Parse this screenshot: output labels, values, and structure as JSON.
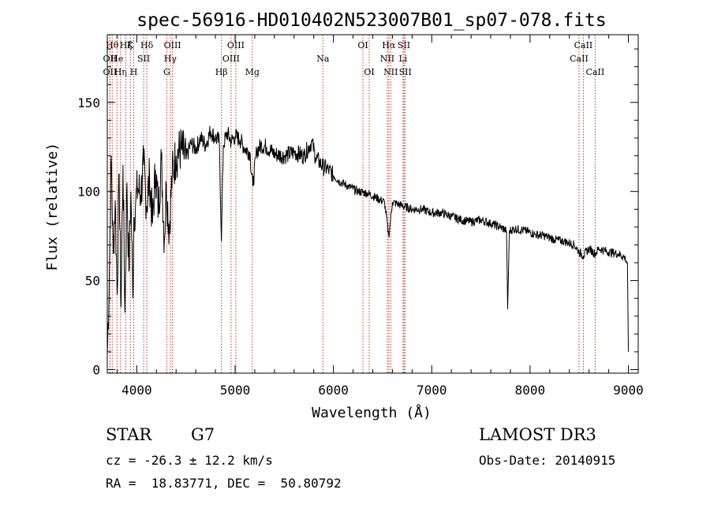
{
  "chart_data": {
    "type": "line",
    "title": "spec-56916-HD010402N523007B01_sp07-078.fits",
    "xlabel": "Wavelength (Å)",
    "ylabel": "Flux (relative)",
    "xlim": [
      3700,
      9100
    ],
    "ylim": [
      -2,
      188
    ],
    "xticks": [
      4000,
      5000,
      6000,
      7000,
      8000,
      9000
    ],
    "yticks": [
      0,
      50,
      100,
      150
    ],
    "series": [
      {
        "name": "spectrum",
        "x": [
          3700,
          3720,
          3740,
          3760,
          3780,
          3800,
          3820,
          3840,
          3860,
          3880,
          3900,
          3920,
          3940,
          3960,
          3970,
          3990,
          4010,
          4040,
          4070,
          4100,
          4130,
          4160,
          4190,
          4220,
          4250,
          4280,
          4300,
          4330,
          4360,
          4400,
          4450,
          4500,
          4550,
          4600,
          4650,
          4700,
          4750,
          4800,
          4840,
          4861,
          4880,
          4920,
          4960,
          5000,
          5050,
          5100,
          5150,
          5180,
          5220,
          5270,
          5320,
          5400,
          5500,
          5600,
          5700,
          5780,
          5820,
          5893,
          5950,
          6050,
          6150,
          6250,
          6350,
          6450,
          6520,
          6563,
          6600,
          6700,
          6800,
          6900,
          7000,
          7100,
          7200,
          7300,
          7400,
          7500,
          7600,
          7700,
          7760,
          7772,
          7790,
          7850,
          7950,
          8050,
          8150,
          8250,
          8350,
          8450,
          8498,
          8542,
          8600,
          8662,
          8700,
          8800,
          8900,
          8960,
          8990,
          9000
        ],
        "values": [
          8,
          50,
          120,
          65,
          95,
          42,
          110,
          35,
          115,
          32,
          105,
          55,
          100,
          40,
          85,
          95,
          102,
          98,
          115,
          92,
          108,
          82,
          112,
          90,
          118,
          72,
          104,
          78,
          110,
          120,
          124,
          118,
          127,
          124,
          130,
          126,
          134,
          130,
          128,
          72,
          126,
          133,
          128,
          131,
          129,
          124,
          122,
          103,
          123,
          126,
          125,
          121,
          120,
          122,
          120,
          128,
          119,
          114,
          112,
          106,
          103,
          100,
          99,
          96,
          94,
          75,
          94,
          92,
          90,
          90,
          88,
          88,
          86,
          84,
          83,
          84,
          82,
          80,
          78,
          34,
          78,
          79,
          78,
          76,
          75,
          73,
          72,
          70,
          66,
          64,
          68,
          65,
          68,
          66,
          65,
          63,
          60,
          10
        ]
      }
    ],
    "lines": [
      {
        "label": "Hθ",
        "x": 3750,
        "row": 1
      },
      {
        "label": "OII",
        "x": 3727,
        "row": 2
      },
      {
        "label": "OII",
        "x": 3727,
        "row": 3
      },
      {
        "label": "He",
        "x": 3798,
        "row": 2
      },
      {
        "label": "Hη",
        "x": 3835,
        "row": 3
      },
      {
        "label": "Hζ",
        "x": 3889,
        "row": 1
      },
      {
        "label": "K",
        "x": 3934,
        "row": 1
      },
      {
        "label": "SII",
        "x": 4070,
        "row": 2
      },
      {
        "label": "H",
        "x": 3969,
        "row": 3
      },
      {
        "label": "Hδ",
        "x": 4102,
        "row": 1
      },
      {
        "label": "G",
        "x": 4305,
        "row": 3
      },
      {
        "label": "Hγ",
        "x": 4341,
        "row": 2
      },
      {
        "label": "OIII",
        "x": 4363,
        "row": 1
      },
      {
        "label": "Hβ",
        "x": 4861,
        "row": 3
      },
      {
        "label": "OIII",
        "x": 4959,
        "row": 2
      },
      {
        "label": "OIII",
        "x": 5007,
        "row": 1
      },
      {
        "label": "Mg",
        "x": 5175,
        "row": 3
      },
      {
        "label": "Na",
        "x": 5893,
        "row": 2
      },
      {
        "label": "OI",
        "x": 6300,
        "row": 1
      },
      {
        "label": "OI",
        "x": 6364,
        "row": 3
      },
      {
        "label": "Hα",
        "x": 6563,
        "row": 1
      },
      {
        "label": "NII",
        "x": 6548,
        "row": 2
      },
      {
        "label": "NII",
        "x": 6583,
        "row": 3
      },
      {
        "label": "SII",
        "x": 6717,
        "row": 1
      },
      {
        "label": "Li",
        "x": 6708,
        "row": 2
      },
      {
        "label": "SII",
        "x": 6731,
        "row": 3
      },
      {
        "label": "CaII",
        "x": 8542,
        "row": 1
      },
      {
        "label": "CaII",
        "x": 8498,
        "row": 2
      },
      {
        "label": "CaII",
        "x": 8662,
        "row": 3
      }
    ]
  },
  "info": {
    "class_label": "STAR",
    "subclass": "G7",
    "redshift": "cz = -26.3 ± 12.2 km/s",
    "coords": "RA =  18.83771, DEC =  50.80792",
    "survey": "LAMOST DR3",
    "obs_date": "Obs-Date: 20140915"
  }
}
